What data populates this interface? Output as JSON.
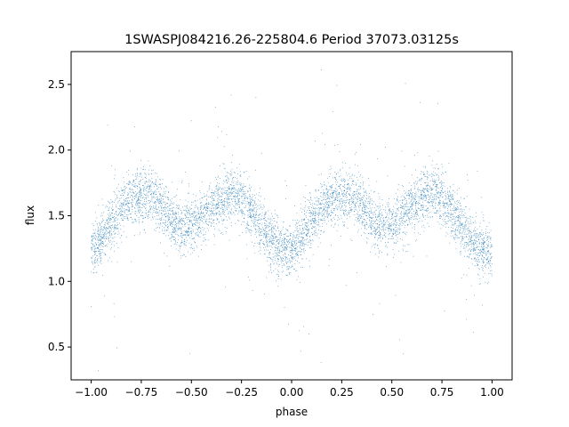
{
  "chart_data": {
    "type": "scatter",
    "title": "1SWASPJ084216.26-225804.6 Period 37073.03125s",
    "xlabel": "phase",
    "ylabel": "flux",
    "xlim": [
      -1.1,
      1.1
    ],
    "ylim": [
      0.25,
      2.75
    ],
    "xticks": [
      -1.0,
      -0.75,
      -0.5,
      -0.25,
      0.0,
      0.25,
      0.5,
      0.75,
      1.0
    ],
    "xtick_labels": [
      "−1.00",
      "−0.75",
      "−0.50",
      "−0.25",
      "0.00",
      "0.25",
      "0.50",
      "0.75",
      "1.00"
    ],
    "yticks": [
      0.5,
      1.0,
      1.5,
      2.0,
      2.5
    ],
    "ytick_labels": [
      "0.5",
      "1.0",
      "1.5",
      "2.0",
      "2.5"
    ],
    "grid": false,
    "legend": "none",
    "point_color": "#1f77b4",
    "series": [
      {
        "x": [
          -1.0,
          -0.95,
          -0.9,
          -0.85,
          -0.8,
          -0.75,
          -0.7,
          -0.65,
          -0.6,
          -0.55,
          -0.5,
          -0.45,
          -0.4,
          -0.35,
          -0.3,
          -0.25,
          -0.2,
          -0.15,
          -0.1,
          -0.05,
          0.0,
          0.05,
          0.1,
          0.15,
          0.2,
          0.25,
          0.3,
          0.35,
          0.4,
          0.45,
          0.5,
          0.55,
          0.6,
          0.65,
          0.7,
          0.75,
          0.8,
          0.85,
          0.9,
          0.95,
          1.0
        ],
        "y": [
          1.22,
          1.33,
          1.45,
          1.55,
          1.62,
          1.66,
          1.65,
          1.58,
          1.47,
          1.41,
          1.42,
          1.48,
          1.56,
          1.63,
          1.66,
          1.62,
          1.53,
          1.42,
          1.32,
          1.25,
          1.22,
          1.33,
          1.45,
          1.55,
          1.62,
          1.66,
          1.65,
          1.58,
          1.47,
          1.41,
          1.42,
          1.48,
          1.56,
          1.63,
          1.66,
          1.62,
          1.53,
          1.42,
          1.32,
          1.25,
          1.22
        ],
        "scatter_spread": 0.1
      }
    ]
  }
}
